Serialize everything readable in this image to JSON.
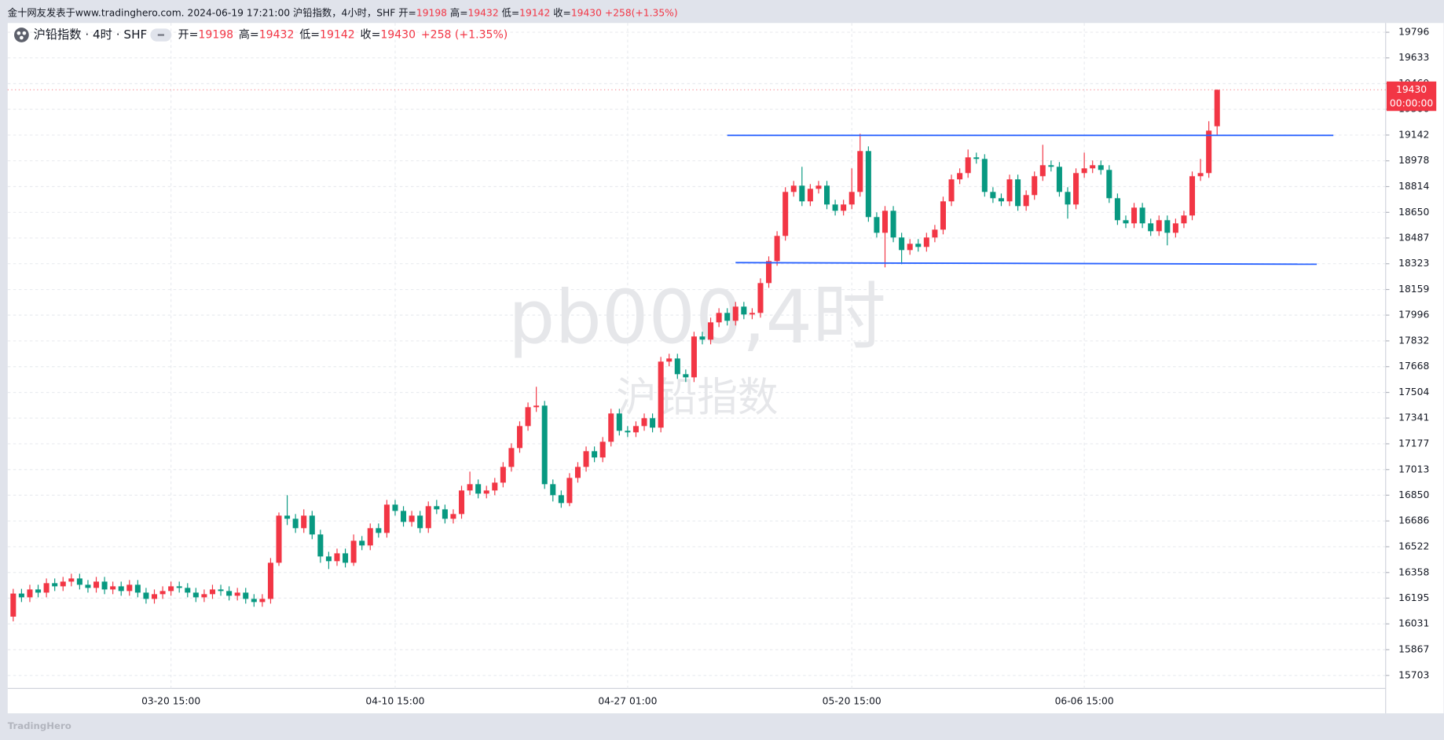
{
  "chart_data": {
    "type": "candlestick",
    "header": {
      "source": "金十网友发表于www.tradinghero.com. 2024-06-19 17:21:00 沪铅指数，4小时，SHF",
      "change": "+258(+1.35%)"
    },
    "legend": {
      "symbol": "沪铅指数 · 4时 · SHF",
      "change": "+258 (+1.35%)"
    },
    "ohlc_labels": [
      "开=",
      "高=",
      "低=",
      "收="
    ],
    "watermark": [
      "pb000,4时",
      "沪铅指数"
    ],
    "footer": "TradingHero",
    "countdown": "00:00:00",
    "up_color": "#f23645",
    "down_color": "#089981",
    "line_color": "#2962ff",
    "grid": true,
    "ylim": [
      15620,
      19855
    ],
    "yticks": [
      19796,
      19633,
      19469,
      19306,
      19142,
      18978,
      18814,
      18650,
      18487,
      18323,
      18159,
      17996,
      17832,
      17668,
      17504,
      17341,
      17177,
      17013,
      16850,
      16686,
      16522,
      16358,
      16195,
      16031,
      15867,
      15703
    ],
    "categories": [
      null,
      null,
      null,
      null,
      null,
      null,
      null,
      null,
      null,
      null,
      null,
      null,
      null,
      null,
      null,
      null,
      null,
      null,
      null,
      "03-20 15:00",
      null,
      null,
      null,
      null,
      null,
      null,
      null,
      null,
      null,
      null,
      null,
      null,
      null,
      null,
      null,
      null,
      null,
      null,
      null,
      null,
      null,
      null,
      null,
      null,
      null,
      null,
      "04-10 15:00",
      null,
      null,
      null,
      null,
      null,
      null,
      null,
      null,
      null,
      null,
      null,
      null,
      null,
      null,
      null,
      null,
      null,
      null,
      null,
      null,
      null,
      null,
      null,
      null,
      null,
      null,
      null,
      "04-27 01:00",
      null,
      null,
      null,
      null,
      null,
      null,
      null,
      null,
      null,
      null,
      null,
      null,
      null,
      null,
      null,
      null,
      null,
      null,
      null,
      null,
      null,
      null,
      null,
      null,
      null,
      null,
      "05-20 15:00",
      null,
      null,
      null,
      null,
      null,
      null,
      null,
      null,
      null,
      null,
      null,
      null,
      null,
      null,
      null,
      null,
      null,
      null,
      null,
      null,
      null,
      null,
      null,
      null,
      null,
      null,
      null,
      "06-06 15:00",
      null,
      null,
      null,
      null,
      null,
      null,
      null,
      null,
      null,
      null,
      null,
      null,
      null,
      null,
      null,
      null
    ],
    "open": [
      16077,
      16224,
      16200,
      16250,
      16230,
      16290,
      16270,
      16300,
      16320,
      16280,
      16260,
      16300,
      16250,
      16270,
      16240,
      16280,
      16230,
      16190,
      16220,
      16240,
      16270,
      16260,
      16230,
      16200,
      16220,
      16250,
      16240,
      16210,
      16230,
      16190,
      16170,
      16190,
      16420,
      16720,
      16700,
      16640,
      16720,
      16600,
      16460,
      16430,
      16480,
      16420,
      16560,
      16530,
      16640,
      16610,
      16790,
      16750,
      16680,
      16720,
      16640,
      16780,
      16760,
      16700,
      16730,
      16880,
      16920,
      16860,
      16880,
      16930,
      17030,
      17150,
      17290,
      17410,
      17420,
      16920,
      16850,
      16800,
      16960,
      17030,
      17130,
      17090,
      17190,
      17370,
      17260,
      17250,
      17290,
      17340,
      17280,
      17700,
      17720,
      17620,
      17600,
      17860,
      17840,
      17950,
      18010,
      17960,
      18050,
      18000,
      18010,
      18200,
      18340,
      18500,
      18780,
      18820,
      18720,
      18800,
      18820,
      18700,
      18660,
      18700,
      18780,
      19040,
      18620,
      18520,
      18660,
      18490,
      18410,
      18450,
      18430,
      18490,
      18540,
      18720,
      18860,
      18900,
      19000,
      18990,
      18780,
      18740,
      18720,
      18860,
      18690,
      18760,
      18880,
      18950,
      18940,
      18780,
      18700,
      18900,
      18930,
      18950,
      18920,
      18740,
      18600,
      18580,
      18680,
      18580,
      18530,
      18600,
      18520,
      18580,
      18630,
      18880,
      18900,
      19198
    ],
    "high": [
      16254,
      16254,
      16280,
      16280,
      16320,
      16320,
      16330,
      16350,
      16350,
      16310,
      16330,
      16330,
      16300,
      16300,
      16310,
      16310,
      16260,
      16250,
      16270,
      16300,
      16300,
      16290,
      16260,
      16250,
      16280,
      16280,
      16270,
      16260,
      16260,
      16220,
      16220,
      16450,
      16740,
      16850,
      16730,
      16760,
      16750,
      16630,
      16490,
      16510,
      16510,
      16600,
      16590,
      16670,
      16670,
      16820,
      16820,
      16780,
      16750,
      16750,
      16810,
      16820,
      16790,
      16760,
      16910,
      17000,
      16950,
      16910,
      16960,
      17060,
      17180,
      17320,
      17440,
      17540,
      17450,
      16950,
      16880,
      16990,
      17060,
      17160,
      17160,
      17220,
      17400,
      17400,
      17290,
      17320,
      17370,
      17370,
      17730,
      17750,
      17750,
      17650,
      17890,
      17890,
      17980,
      18040,
      18040,
      18080,
      18080,
      18040,
      18230,
      18370,
      18530,
      18810,
      18850,
      18940,
      18830,
      18850,
      18850,
      18730,
      18730,
      18930,
      19150,
      19070,
      18650,
      18690,
      18690,
      18520,
      18480,
      18480,
      18520,
      18570,
      18750,
      18890,
      18930,
      19050,
      19030,
      19020,
      18810,
      18770,
      18890,
      18890,
      18790,
      18910,
      19080,
      18980,
      18970,
      18810,
      18930,
      19030,
      18980,
      18980,
      18950,
      18770,
      18630,
      18710,
      18710,
      18610,
      18630,
      18630,
      18610,
      18660,
      18910,
      18990,
      19230,
      19432
    ],
    "low": [
      16047,
      16170,
      16170,
      16200,
      16200,
      16240,
      16240,
      16270,
      16250,
      16230,
      16230,
      16220,
      16220,
      16210,
      16210,
      16200,
      16160,
      16160,
      16190,
      16210,
      16230,
      16200,
      16170,
      16170,
      16190,
      16210,
      16180,
      16180,
      16160,
      16140,
      16140,
      16160,
      16400,
      16660,
      16610,
      16610,
      16570,
      16420,
      16380,
      16400,
      16390,
      16400,
      16500,
      16500,
      16580,
      16580,
      16720,
      16650,
      16650,
      16610,
      16610,
      16730,
      16670,
      16670,
      16700,
      16850,
      16830,
      16830,
      16850,
      16900,
      17000,
      17120,
      17260,
      17380,
      16890,
      16810,
      16770,
      16780,
      16930,
      17000,
      17060,
      17060,
      17160,
      17230,
      17220,
      17220,
      17260,
      17250,
      17250,
      17670,
      17590,
      17570,
      17570,
      17810,
      17810,
      17920,
      17930,
      17930,
      17970,
      17970,
      17980,
      18170,
      18310,
      18470,
      18750,
      18690,
      18690,
      18770,
      18670,
      18630,
      18630,
      18670,
      18750,
      18590,
      18490,
      18300,
      18460,
      18320,
      18380,
      18400,
      18400,
      18460,
      18510,
      18690,
      18830,
      18870,
      18960,
      18750,
      18710,
      18690,
      18690,
      18660,
      18660,
      18730,
      18850,
      18910,
      18750,
      18610,
      18670,
      18870,
      18900,
      18890,
      18710,
      18570,
      18550,
      18550,
      18550,
      18500,
      18500,
      18440,
      18490,
      18550,
      18600,
      18850,
      18870,
      19142
    ],
    "close": [
      16224,
      16200,
      16250,
      16230,
      16290,
      16270,
      16300,
      16320,
      16280,
      16260,
      16300,
      16250,
      16270,
      16240,
      16280,
      16230,
      16190,
      16220,
      16240,
      16270,
      16260,
      16230,
      16200,
      16220,
      16250,
      16240,
      16210,
      16230,
      16190,
      16170,
      16190,
      16420,
      16720,
      16700,
      16640,
      16720,
      16600,
      16460,
      16430,
      16480,
      16420,
      16560,
      16530,
      16640,
      16610,
      16790,
      16750,
      16680,
      16720,
      16640,
      16780,
      16760,
      16700,
      16730,
      16880,
      16920,
      16860,
      16880,
      16930,
      17030,
      17150,
      17290,
      17410,
      17420,
      16920,
      16850,
      16800,
      16960,
      17030,
      17130,
      17090,
      17190,
      17370,
      17260,
      17250,
      17290,
      17340,
      17280,
      17700,
      17720,
      17620,
      17600,
      17860,
      17840,
      17950,
      18010,
      17960,
      18050,
      18000,
      18010,
      18200,
      18340,
      18500,
      18780,
      18820,
      18720,
      18800,
      18820,
      18700,
      18660,
      18700,
      18780,
      19040,
      18620,
      18520,
      18660,
      18490,
      18410,
      18450,
      18430,
      18490,
      18540,
      18720,
      18860,
      18900,
      19000,
      18990,
      18780,
      18740,
      18720,
      18860,
      18690,
      18760,
      18880,
      18950,
      18940,
      18780,
      18700,
      18900,
      18930,
      18950,
      18920,
      18740,
      18600,
      18580,
      18680,
      18580,
      18530,
      18600,
      18520,
      18580,
      18630,
      18880,
      18900,
      19170,
      19430
    ],
    "lines": [
      {
        "x": [
          86,
          159
        ],
        "y": [
          19140,
          19140
        ]
      },
      {
        "x": [
          87,
          157
        ],
        "y": [
          18330,
          18320
        ]
      }
    ]
  }
}
